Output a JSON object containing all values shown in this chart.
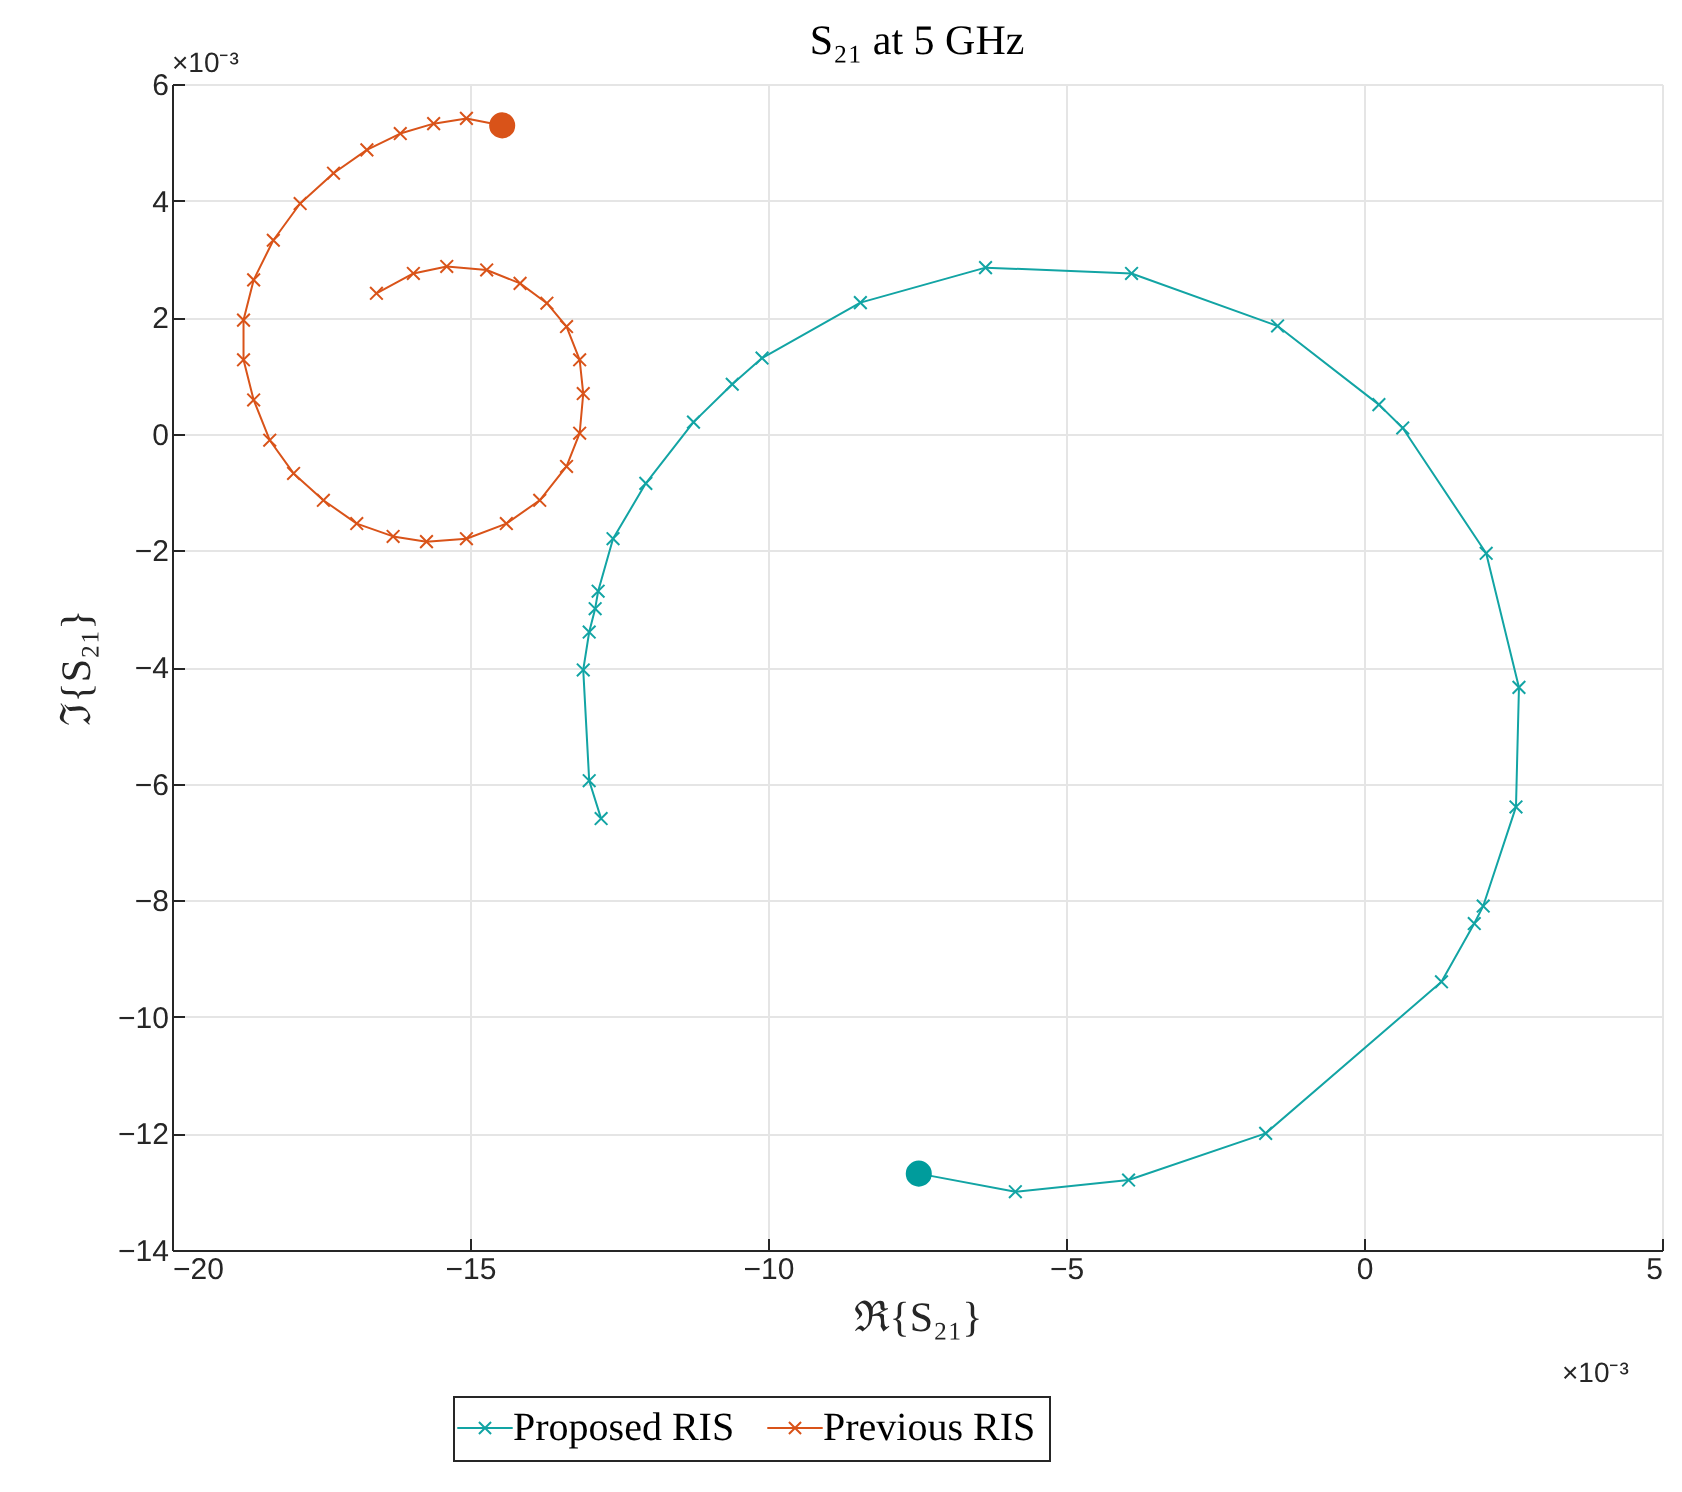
{
  "chart_data": {
    "type": "line",
    "title": "S₂₁ at 5 GHz",
    "xlabel": "ℜ{S₂₁}",
    "ylabel": "ℑ{S₂₁}",
    "annotations": [
      "×10⁻³",
      "×10⁻³"
    ],
    "xlim": [
      -20,
      5
    ],
    "xticks": [
      -20,
      -15,
      -10,
      -5,
      0,
      5
    ],
    "ylim": [
      -14,
      6
    ],
    "yticks": [
      -14,
      -12,
      -10,
      -8,
      -6,
      -4,
      -2,
      0,
      2,
      4,
      6
    ],
    "grid": true,
    "legend": "bottom",
    "series": [
      {
        "name": "Proposed RIS",
        "color": "#12a4a4",
        "marker": "cross",
        "x": [
          -7.47,
          -5.85,
          -3.95,
          -1.65,
          1.3,
          1.85,
          2.0,
          2.55,
          2.6,
          2.05,
          0.65,
          0.25,
          -1.45,
          -3.9,
          -6.35,
          -8.45,
          -10.1,
          -10.6,
          -11.25,
          -12.05,
          -12.6,
          -12.85,
          -12.9,
          -13.0,
          -13.1,
          -13.0,
          -12.8
        ],
        "values": [
          -12.69,
          -13.0,
          -12.8,
          -12.0,
          -9.4,
          -8.4,
          -8.1,
          -6.4,
          -4.35,
          -2.05,
          0.1,
          0.5,
          1.85,
          2.75,
          2.85,
          2.25,
          1.3,
          0.85,
          0.2,
          -0.85,
          -1.8,
          -2.7,
          -3.0,
          -3.4,
          -4.05,
          -5.95,
          -6.6
        ]
      },
      {
        "name": "Previous RIS",
        "color": "#d95319",
        "marker": "cross",
        "x": [
          -14.46,
          -15.06,
          -15.61,
          -16.17,
          -16.73,
          -17.29,
          -17.85,
          -18.3,
          -18.63,
          -18.8,
          -18.8,
          -18.63,
          -18.36,
          -17.96,
          -17.46,
          -16.9,
          -16.29,
          -15.73,
          -15.06,
          -14.39,
          -13.83,
          -13.38,
          -13.16,
          -13.1,
          -13.16,
          -13.38,
          -13.71,
          -14.16,
          -14.72,
          -15.39,
          -15.95,
          -16.57
        ],
        "values": [
          5.29,
          5.41,
          5.32,
          5.15,
          4.87,
          4.47,
          3.95,
          3.32,
          2.64,
          1.95,
          1.27,
          0.58,
          -0.11,
          -0.68,
          -1.14,
          -1.54,
          -1.76,
          -1.85,
          -1.8,
          -1.54,
          -1.14,
          -0.56,
          0.01,
          0.69,
          1.27,
          1.84,
          2.24,
          2.58,
          2.81,
          2.87,
          2.75,
          2.41
        ]
      },
      {
        "color": "#009c9c",
        "type": "scatter",
        "marker": "circle",
        "x": [
          -7.47
        ],
        "values": [
          -12.69
        ]
      },
      {
        "color": "#d95319",
        "type": "scatter",
        "marker": "circle",
        "x": [
          -14.46
        ],
        "values": [
          5.29
        ]
      }
    ]
  }
}
